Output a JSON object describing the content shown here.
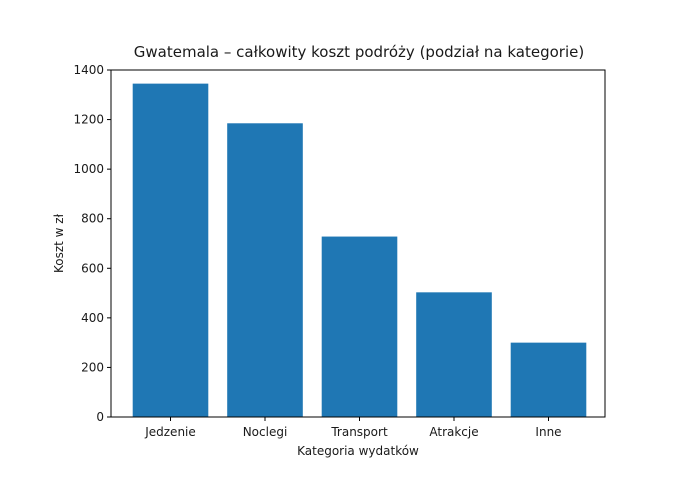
{
  "chart_data": {
    "type": "bar",
    "title": "Gwatemala – całkowity koszt podróży (podział na kategorie)",
    "xlabel": "Kategoria wydatków",
    "ylabel": "Koszt w zł",
    "categories": [
      "Jedzenie",
      "Noclegi",
      "Transport",
      "Atrakcje",
      "Inne"
    ],
    "values": [
      1345,
      1185,
      728,
      503,
      300
    ],
    "ylim": [
      0,
      1400
    ],
    "yticks": [
      0,
      200,
      400,
      600,
      800,
      1000,
      1200,
      1400
    ],
    "bar_color": "#1f77b4",
    "grid": false,
    "legend": "none"
  }
}
